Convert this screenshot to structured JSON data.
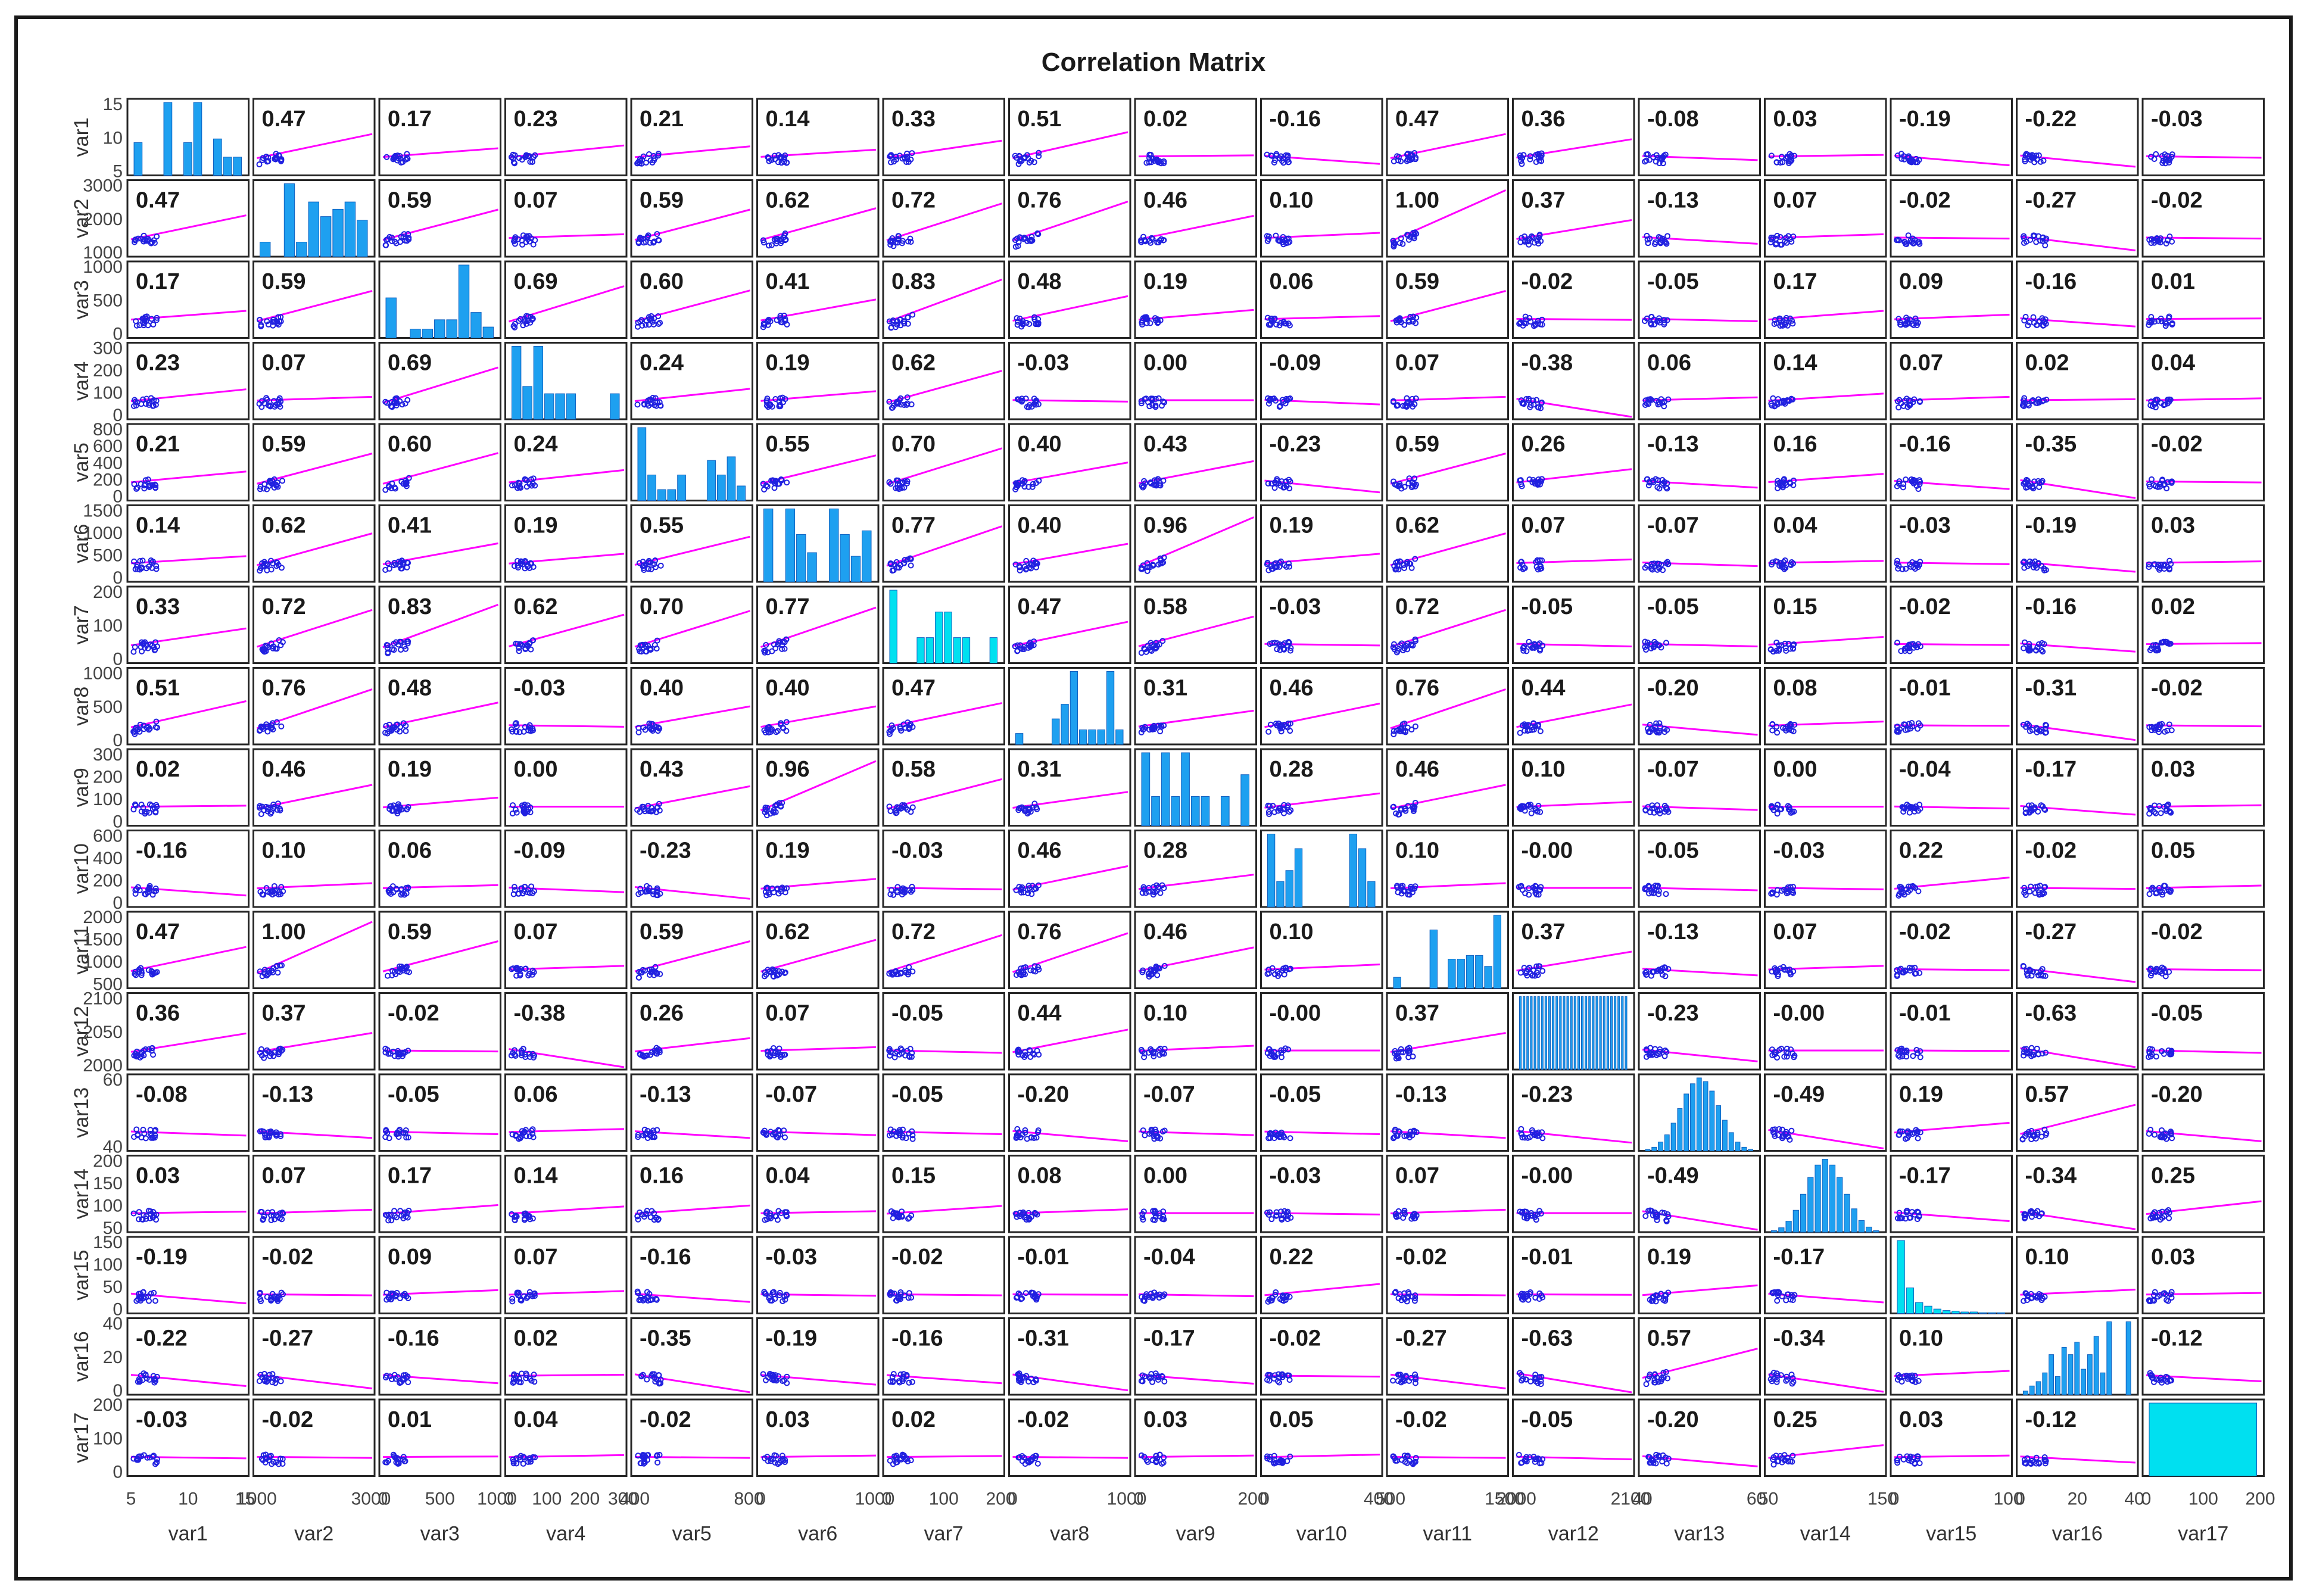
{
  "chart_data": {
    "type": "scatter-matrix",
    "title": "Correlation Matrix",
    "variables": [
      "var1",
      "var2",
      "var3",
      "var4",
      "var5",
      "var6",
      "var7",
      "var8",
      "var9",
      "var10",
      "var11",
      "var12",
      "var13",
      "var14",
      "var15",
      "var16",
      "var17"
    ],
    "correlation_labels": [
      [
        "",
        "0.47",
        "0.17",
        "0.23",
        "0.21",
        "0.14",
        "0.33",
        "0.51",
        "0.02",
        "-0.16",
        "0.47",
        "0.36",
        "-0.08",
        "0.03",
        "-0.19",
        "-0.22",
        "-0.03"
      ],
      [
        "0.47",
        "",
        "0.59",
        "0.07",
        "0.59",
        "0.62",
        "0.72",
        "0.76",
        "0.46",
        "0.10",
        "1.00",
        "0.37",
        "-0.13",
        "0.07",
        "-0.02",
        "-0.27",
        "-0.02"
      ],
      [
        "0.17",
        "0.59",
        "",
        "0.69",
        "0.60",
        "0.41",
        "0.83",
        "0.48",
        "0.19",
        "0.06",
        "0.59",
        "-0.02",
        "-0.05",
        "0.17",
        "0.09",
        "-0.16",
        "0.01"
      ],
      [
        "0.23",
        "0.07",
        "0.69",
        "",
        "0.24",
        "0.19",
        "0.62",
        "-0.03",
        "0.00",
        "-0.09",
        "0.07",
        "-0.38",
        "0.06",
        "0.14",
        "0.07",
        "0.02",
        "0.04"
      ],
      [
        "0.21",
        "0.59",
        "0.60",
        "0.24",
        "",
        "0.55",
        "0.70",
        "0.40",
        "0.43",
        "-0.23",
        "0.59",
        "0.26",
        "-0.13",
        "0.16",
        "-0.16",
        "-0.35",
        "-0.02"
      ],
      [
        "0.14",
        "0.62",
        "0.41",
        "0.19",
        "0.55",
        "",
        "0.77",
        "0.40",
        "0.96",
        "0.19",
        "0.62",
        "0.07",
        "-0.07",
        "0.04",
        "-0.03",
        "-0.19",
        "0.03"
      ],
      [
        "0.33",
        "0.72",
        "0.83",
        "0.62",
        "0.70",
        "0.77",
        "",
        "0.47",
        "0.58",
        "-0.03",
        "0.72",
        "-0.05",
        "-0.05",
        "0.15",
        "-0.02",
        "-0.16",
        "0.02"
      ],
      [
        "0.51",
        "0.76",
        "0.48",
        "-0.03",
        "0.40",
        "0.40",
        "0.47",
        "",
        "0.31",
        "0.46",
        "0.76",
        "0.44",
        "-0.20",
        "0.08",
        "-0.01",
        "-0.31",
        "-0.02"
      ],
      [
        "0.02",
        "0.46",
        "0.19",
        "0.00",
        "0.43",
        "0.96",
        "0.58",
        "0.31",
        "",
        "0.28",
        "0.46",
        "0.10",
        "-0.07",
        "0.00",
        "-0.04",
        "-0.17",
        "0.03"
      ],
      [
        "-0.16",
        "0.10",
        "0.06",
        "-0.09",
        "-0.23",
        "0.19",
        "-0.03",
        "0.46",
        "0.28",
        "",
        "0.10",
        "-0.00",
        "-0.05",
        "-0.03",
        "0.22",
        "-0.02",
        "0.05"
      ],
      [
        "0.47",
        "1.00",
        "0.59",
        "0.07",
        "0.59",
        "0.62",
        "0.72",
        "0.76",
        "0.46",
        "0.10",
        "",
        "0.37",
        "-0.13",
        "0.07",
        "-0.02",
        "-0.27",
        "-0.02"
      ],
      [
        "0.36",
        "0.37",
        "-0.02",
        "-0.38",
        "0.26",
        "0.07",
        "-0.05",
        "0.44",
        "0.10",
        "-0.00",
        "0.37",
        "",
        "-0.23",
        "-0.00",
        "-0.01",
        "-0.63",
        "-0.05"
      ],
      [
        "-0.08",
        "-0.13",
        "-0.05",
        "0.06",
        "-0.13",
        "-0.07",
        "-0.05",
        "-0.20",
        "-0.07",
        "-0.05",
        "-0.13",
        "-0.23",
        "",
        "-0.49",
        "0.19",
        "0.57",
        "-0.20"
      ],
      [
        "0.03",
        "0.07",
        "0.17",
        "0.14",
        "0.16",
        "0.04",
        "0.15",
        "0.08",
        "0.00",
        "-0.03",
        "0.07",
        "-0.00",
        "-0.49",
        "",
        "-0.17",
        "-0.34",
        "0.25"
      ],
      [
        "-0.19",
        "-0.02",
        "0.09",
        "0.07",
        "-0.16",
        "-0.03",
        "-0.02",
        "-0.01",
        "-0.04",
        "0.22",
        "-0.02",
        "-0.01",
        "0.19",
        "-0.17",
        "",
        "0.10",
        "0.03"
      ],
      [
        "-0.22",
        "-0.27",
        "-0.16",
        "0.02",
        "-0.35",
        "-0.19",
        "-0.16",
        "-0.31",
        "-0.17",
        "-0.02",
        "-0.27",
        "-0.63",
        "0.57",
        "-0.34",
        "0.10",
        "",
        "-0.12"
      ],
      [
        "-0.03",
        "-0.02",
        "0.01",
        "0.04",
        "-0.02",
        "0.03",
        "0.02",
        "-0.02",
        "0.03",
        "0.05",
        "-0.02",
        "-0.05",
        "-0.20",
        "0.25",
        "0.03",
        "-0.12",
        ""
      ]
    ],
    "y_tick_labels": [
      [
        "5",
        "10",
        "15"
      ],
      [
        "1000",
        "2000",
        "3000"
      ],
      [
        "0",
        "500",
        "1000"
      ],
      [
        "0",
        "100",
        "200",
        "300"
      ],
      [
        "0",
        "200",
        "400",
        "600",
        "800"
      ],
      [
        "0",
        "500",
        "1000",
        "1500"
      ],
      [
        "0",
        "100",
        "200"
      ],
      [
        "0",
        "500",
        "1000"
      ],
      [
        "0",
        "100",
        "200",
        "300"
      ],
      [
        "0",
        "200",
        "400",
        "600"
      ],
      [
        "500",
        "1000",
        "1500",
        "2000"
      ],
      [
        "2000",
        "2050",
        "2100"
      ],
      [
        "40",
        "60"
      ],
      [
        "50",
        "100",
        "150",
        "200"
      ],
      [
        "0",
        "50",
        "100",
        "150"
      ],
      [
        "0",
        "20",
        "40"
      ],
      [
        "0",
        "100",
        "200"
      ]
    ],
    "x_tick_labels": [
      [
        "5",
        "10",
        "15"
      ],
      [
        "1000",
        "3000"
      ],
      [
        "0",
        "500",
        "1000"
      ],
      [
        "0",
        "100",
        "200",
        "300"
      ],
      [
        "400",
        "800"
      ],
      [
        "0",
        "1000"
      ],
      [
        "0",
        "100",
        "200"
      ],
      [
        "0",
        "1000"
      ],
      [
        "0",
        "200"
      ],
      [
        "0",
        "400"
      ],
      [
        "500",
        "1500"
      ],
      [
        "2000",
        "2100"
      ],
      [
        "40",
        "60"
      ],
      [
        "50",
        "150"
      ],
      [
        "0",
        "100"
      ],
      [
        "0",
        "20",
        "40"
      ],
      [
        "0",
        "100",
        "200"
      ]
    ],
    "histogram_heights": [
      [
        0.45,
        0,
        0,
        1.0,
        0,
        0.45,
        1.0,
        0,
        0.5,
        0.25,
        0.25
      ],
      [
        0.2,
        0,
        1.0,
        0.2,
        0.75,
        0.55,
        0.65,
        0.75,
        0.5
      ],
      [
        0.55,
        0,
        0.12,
        0.12,
        0.25,
        0.25,
        1.0,
        0.35,
        0.15
      ],
      [
        1.0,
        0.45,
        1.0,
        0.35,
        0.35,
        0.35,
        0,
        0,
        0,
        0.35
      ],
      [
        1.0,
        0.35,
        0.15,
        0.15,
        0.35,
        0,
        0,
        0.55,
        0.35,
        0.6,
        0.2
      ],
      [
        1.0,
        0,
        1.0,
        0.65,
        0.4,
        0,
        1.0,
        0.65,
        0.35,
        0.7
      ],
      [
        1.0,
        0,
        0,
        0.35,
        0.35,
        0.7,
        0.7,
        0.35,
        0.35,
        0,
        0,
        0.35
      ],
      [
        0.15,
        0,
        0,
        0,
        0.35,
        0.55,
        1.0,
        0.2,
        0.2,
        0.2,
        1.0,
        0.2
      ],
      [
        1.0,
        0.4,
        1.0,
        0.4,
        1.0,
        0.4,
        0.4,
        0,
        0.4,
        0,
        0.7
      ],
      [
        1.0,
        0.35,
        0.5,
        0.8,
        0,
        0,
        0,
        0,
        0,
        1.0,
        0.8,
        0.35
      ],
      [
        0.15,
        0,
        0,
        0,
        0.8,
        0,
        0.4,
        0.4,
        0.45,
        0.45,
        0.3,
        1.0
      ],
      [
        1,
        1,
        1,
        1,
        1,
        1,
        1,
        1,
        1,
        1,
        1,
        1,
        1,
        1,
        1,
        1,
        1,
        1,
        1,
        1,
        1,
        1,
        1,
        1,
        1,
        1,
        1,
        1,
        1,
        1
      ],
      [
        0.02,
        0.05,
        0.12,
        0.22,
        0.38,
        0.58,
        0.78,
        0.92,
        1.0,
        0.95,
        0.82,
        0.62,
        0.42,
        0.25,
        0.12,
        0.05,
        0.02
      ],
      [
        0.02,
        0.06,
        0.15,
        0.3,
        0.52,
        0.75,
        0.92,
        1.0,
        0.92,
        0.75,
        0.52,
        0.32,
        0.16,
        0.07,
        0.02
      ],
      [
        1.0,
        0.35,
        0.15,
        0.1,
        0.06,
        0.04,
        0.03,
        0.02,
        0.02,
        0.01,
        0.01,
        0.01
      ],
      [
        0.05,
        0.12,
        0.18,
        0.3,
        0.55,
        0.25,
        0.65,
        0.55,
        0.72,
        0.35,
        0.55,
        0.8,
        0.3,
        1.0,
        0,
        0,
        1.0
      ],
      [
        1.0
      ]
    ]
  }
}
